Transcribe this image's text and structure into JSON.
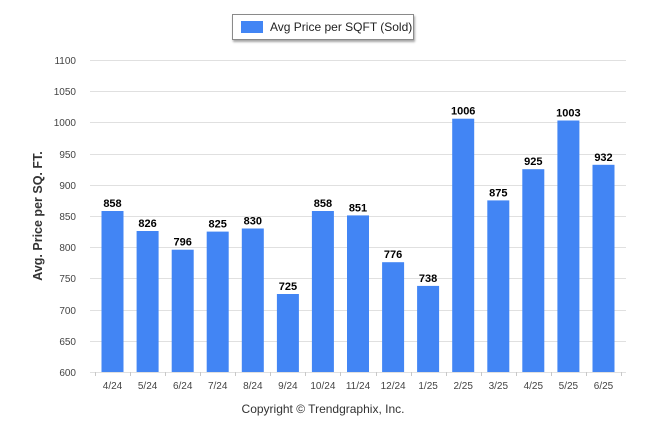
{
  "legend": {
    "label": "Avg Price per SQFT (Sold)",
    "color": "#4285f4"
  },
  "ylabel": "Avg. Price per SQ. FT.",
  "footer": "Copyright © Trendgraphix, Inc.",
  "chart_data": {
    "type": "bar",
    "categories": [
      "4/24",
      "5/24",
      "6/24",
      "7/24",
      "8/24",
      "9/24",
      "10/24",
      "11/24",
      "12/24",
      "1/25",
      "2/25",
      "3/25",
      "4/25",
      "5/25",
      "6/25"
    ],
    "series": [
      {
        "name": "Avg Price per SQFT (Sold)",
        "values": [
          858,
          826,
          796,
          825,
          830,
          725,
          858,
          851,
          776,
          738,
          1006,
          875,
          925,
          1003,
          932
        ]
      }
    ],
    "ylabel": "Avg. Price per SQ. FT.",
    "ylim": [
      600,
      1100
    ],
    "yticks": [
      600,
      650,
      700,
      750,
      800,
      850,
      900,
      950,
      1000,
      1050,
      1100
    ],
    "grid": true,
    "legend_position": "top-center",
    "bar_color": "#4285f4"
  }
}
